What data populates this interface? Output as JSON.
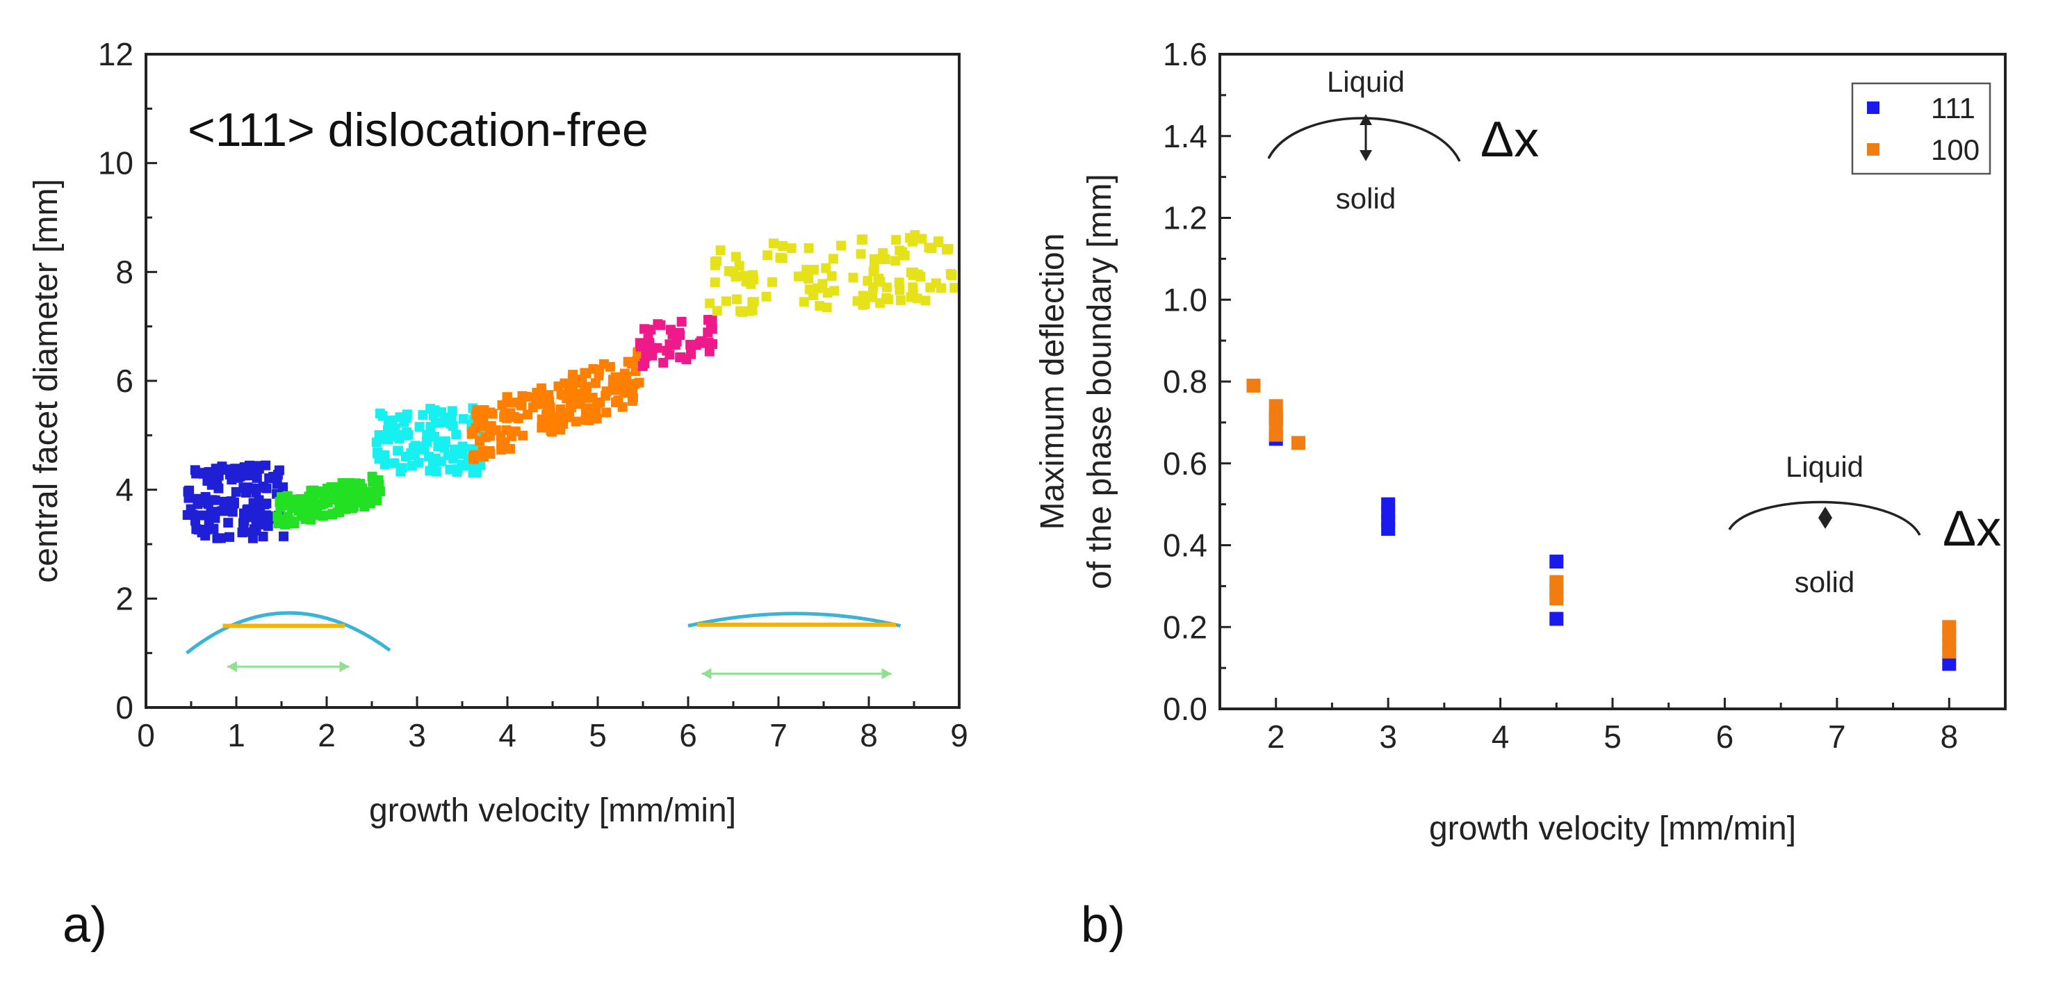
{
  "chart_data": [
    {
      "type": "scatter",
      "panel_label": "a)",
      "title": "<111> dislocation-free",
      "xlabel": "growth velocity [mm/min]",
      "ylabel": "central facet diameter [mm]",
      "xlim": [
        0,
        9
      ],
      "ylim": [
        0,
        12
      ],
      "xticks": [
        0,
        1,
        2,
        3,
        4,
        5,
        6,
        7,
        8,
        9
      ],
      "yticks": [
        0,
        2,
        4,
        6,
        8,
        10,
        12
      ],
      "grid": false,
      "clusters": [
        {
          "name": "cluster-1",
          "color": "#1f1fd6",
          "x_range": [
            0.45,
            1.55
          ],
          "y_range": [
            3.1,
            4.45
          ],
          "count": 140,
          "trend": 0.0
        },
        {
          "name": "cluster-2",
          "color": "#22e022",
          "x_range": [
            1.45,
            2.6
          ],
          "y_range": [
            3.3,
            4.3
          ],
          "count": 120,
          "trend": 0.45
        },
        {
          "name": "cluster-3",
          "color": "#17f0f0",
          "x_range": [
            2.55,
            3.75
          ],
          "y_range": [
            4.3,
            5.5
          ],
          "count": 120,
          "trend": 0.0
        },
        {
          "name": "cluster-4",
          "color": "#ff8000",
          "x_range": [
            3.6,
            5.5
          ],
          "y_range": [
            4.5,
            6.6
          ],
          "count": 170,
          "trend": 1.1
        },
        {
          "name": "cluster-5",
          "color": "#ee1a8a",
          "x_range": [
            5.45,
            6.3
          ],
          "y_range": [
            6.2,
            7.3
          ],
          "count": 45,
          "trend": 0.3
        },
        {
          "name": "cluster-6",
          "color": "#e6e21a",
          "x_range": [
            6.2,
            8.95
          ],
          "y_range": [
            7.2,
            8.75
          ],
          "count": 110,
          "trend": 0.3
        }
      ],
      "insets": [
        {
          "name": "curved-interface",
          "arc_color": "#3ab4d6",
          "facet_color": "#f5b400",
          "arrow_color": "#8fe08f"
        },
        {
          "name": "flat-interface",
          "arc_color": "#3ab4d6",
          "facet_color": "#f5b400",
          "arrow_color": "#8fe08f"
        }
      ]
    },
    {
      "type": "scatter",
      "panel_label": "b)",
      "xlabel": "growth velocity [mm/min]",
      "ylabel_line1": "Maximum deflection",
      "ylabel_line2": "of the phase boundary [mm]",
      "xlim": [
        1.5,
        8.5
      ],
      "ylim": [
        0.0,
        1.6
      ],
      "xticks": [
        2,
        3,
        4,
        5,
        6,
        7,
        8
      ],
      "yticks": [
        0.0,
        0.2,
        0.4,
        0.6,
        0.8,
        1.0,
        1.2,
        1.4,
        1.6
      ],
      "ytick_labels": [
        "0.0",
        "0.2",
        "0.4",
        "0.6",
        "0.8",
        "1.0",
        "1.2",
        "1.4",
        "1.6"
      ],
      "grid": false,
      "legend_position": "top-right",
      "series": [
        {
          "name": "111",
          "color": "#1a1aee",
          "points": [
            [
              2.0,
              0.71
            ],
            [
              2.0,
              0.66
            ],
            [
              3.0,
              0.5
            ],
            [
              3.0,
              0.48
            ],
            [
              3.0,
              0.46
            ],
            [
              3.0,
              0.44
            ],
            [
              4.5,
              0.36
            ],
            [
              4.5,
              0.22
            ],
            [
              8.0,
              0.11
            ]
          ]
        },
        {
          "name": "100",
          "color": "#f07c12",
          "points": [
            [
              1.8,
              0.79
            ],
            [
              2.0,
              0.74
            ],
            [
              2.0,
              0.72
            ],
            [
              2.0,
              0.69
            ],
            [
              2.0,
              0.67
            ],
            [
              2.2,
              0.65
            ],
            [
              4.5,
              0.31
            ],
            [
              4.5,
              0.29
            ],
            [
              4.5,
              0.27
            ],
            [
              8.0,
              0.2
            ],
            [
              8.0,
              0.18
            ],
            [
              8.0,
              0.16
            ],
            [
              8.0,
              0.14
            ]
          ]
        }
      ],
      "annotations": {
        "top": {
          "liquid": "Liquid",
          "solid": "solid",
          "delta": "Δx"
        },
        "bottom": {
          "liquid": "Liquid",
          "solid": "solid",
          "delta": "Δx"
        }
      }
    }
  ]
}
